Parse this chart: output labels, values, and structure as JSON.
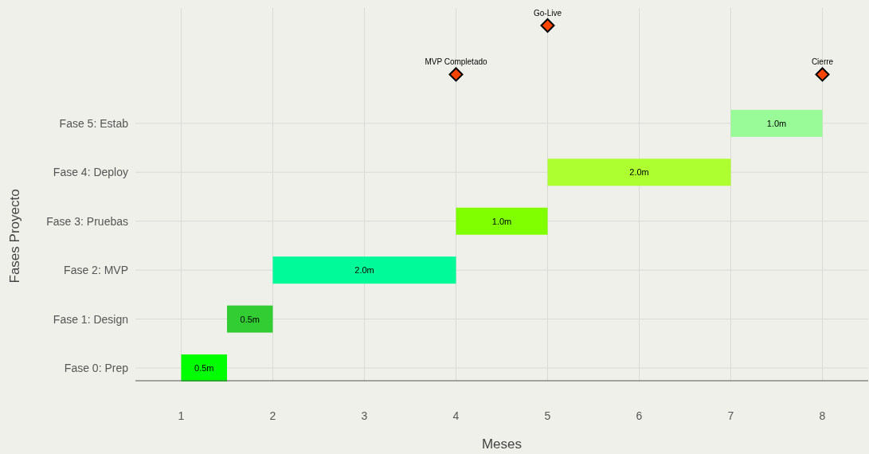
{
  "chart_data": {
    "type": "bar",
    "orientation": "horizontal",
    "xlabel": "Meses",
    "ylabel": "Fases Proyecto",
    "categories": [
      null,
      null,
      "Fase 5: Estab",
      "Fase 4: Deploy",
      "Fase 3: Pruebas",
      "Fase 2: MVP",
      "Fase 1: Design",
      "Fase 0: Prep"
    ],
    "series": [
      {
        "base": [
          null,
          null,
          7,
          5,
          4,
          2,
          1.5,
          1
        ],
        "values": [
          null,
          null,
          1,
          2,
          1,
          2,
          0.5,
          0.5
        ],
        "colors": [
          null,
          null,
          "#98fb98",
          "#adff2f",
          "#7fff00",
          "#00fa9a",
          "#32cd32",
          "#00ff00"
        ],
        "value_labels": [
          null,
          null,
          "1.0m",
          "2.0m",
          "1.0m",
          "2.0m",
          "0.5m",
          "0.5m"
        ]
      },
      {
        "type": "scatter",
        "name": "MVP Completado",
        "values": [
          null,
          4,
          null,
          null,
          null,
          null,
          null,
          null
        ],
        "color": "#ff4500",
        "marker": "diamond"
      },
      {
        "type": "scatter",
        "name": "Go-Live",
        "values": [
          5,
          null,
          null,
          null,
          null,
          null,
          null,
          null
        ],
        "color": "#ff4500",
        "marker": "diamond"
      },
      {
        "type": "scatter",
        "name": "Cierre",
        "values": [
          null,
          8,
          null,
          null,
          null,
          null,
          null,
          null
        ],
        "color": "#ff4500",
        "marker": "diamond"
      }
    ],
    "xlim": [
      0.5,
      8.5
    ],
    "xticks": [
      1,
      2,
      3,
      4,
      5,
      6,
      7,
      8
    ],
    "grid": true,
    "legend": false
  }
}
